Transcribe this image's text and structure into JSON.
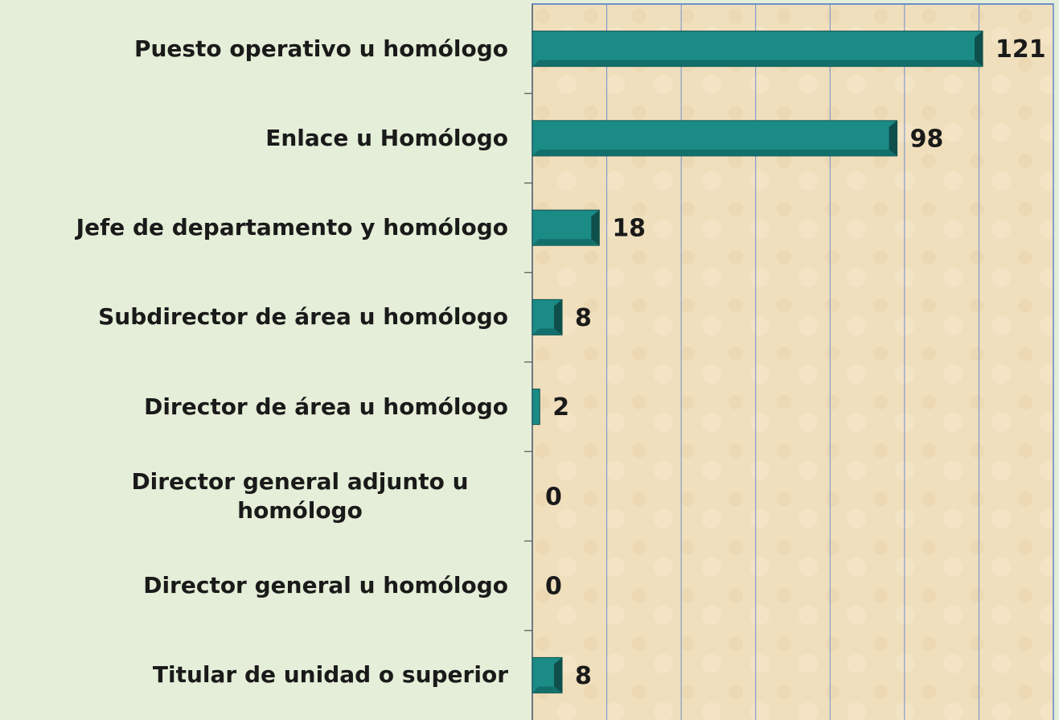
{
  "chart_data": {
    "type": "bar",
    "orientation": "horizontal",
    "categories": [
      "Puesto operativo u homólogo",
      "Enlace u Homólogo",
      "Jefe de departamento y homólogo",
      "Subdirector de área u homólogo",
      "Director de área u homólogo",
      "Director general  adjunto u homólogo",
      "Director general u homólogo",
      "Titular de unidad o superior"
    ],
    "values": [
      121,
      98,
      18,
      8,
      2,
      0,
      0,
      8
    ],
    "color": "#1b8b86",
    "xlim": [
      0,
      140
    ],
    "xticks": [
      0,
      20,
      40,
      60,
      80,
      100,
      120,
      140
    ],
    "grid": true
  }
}
